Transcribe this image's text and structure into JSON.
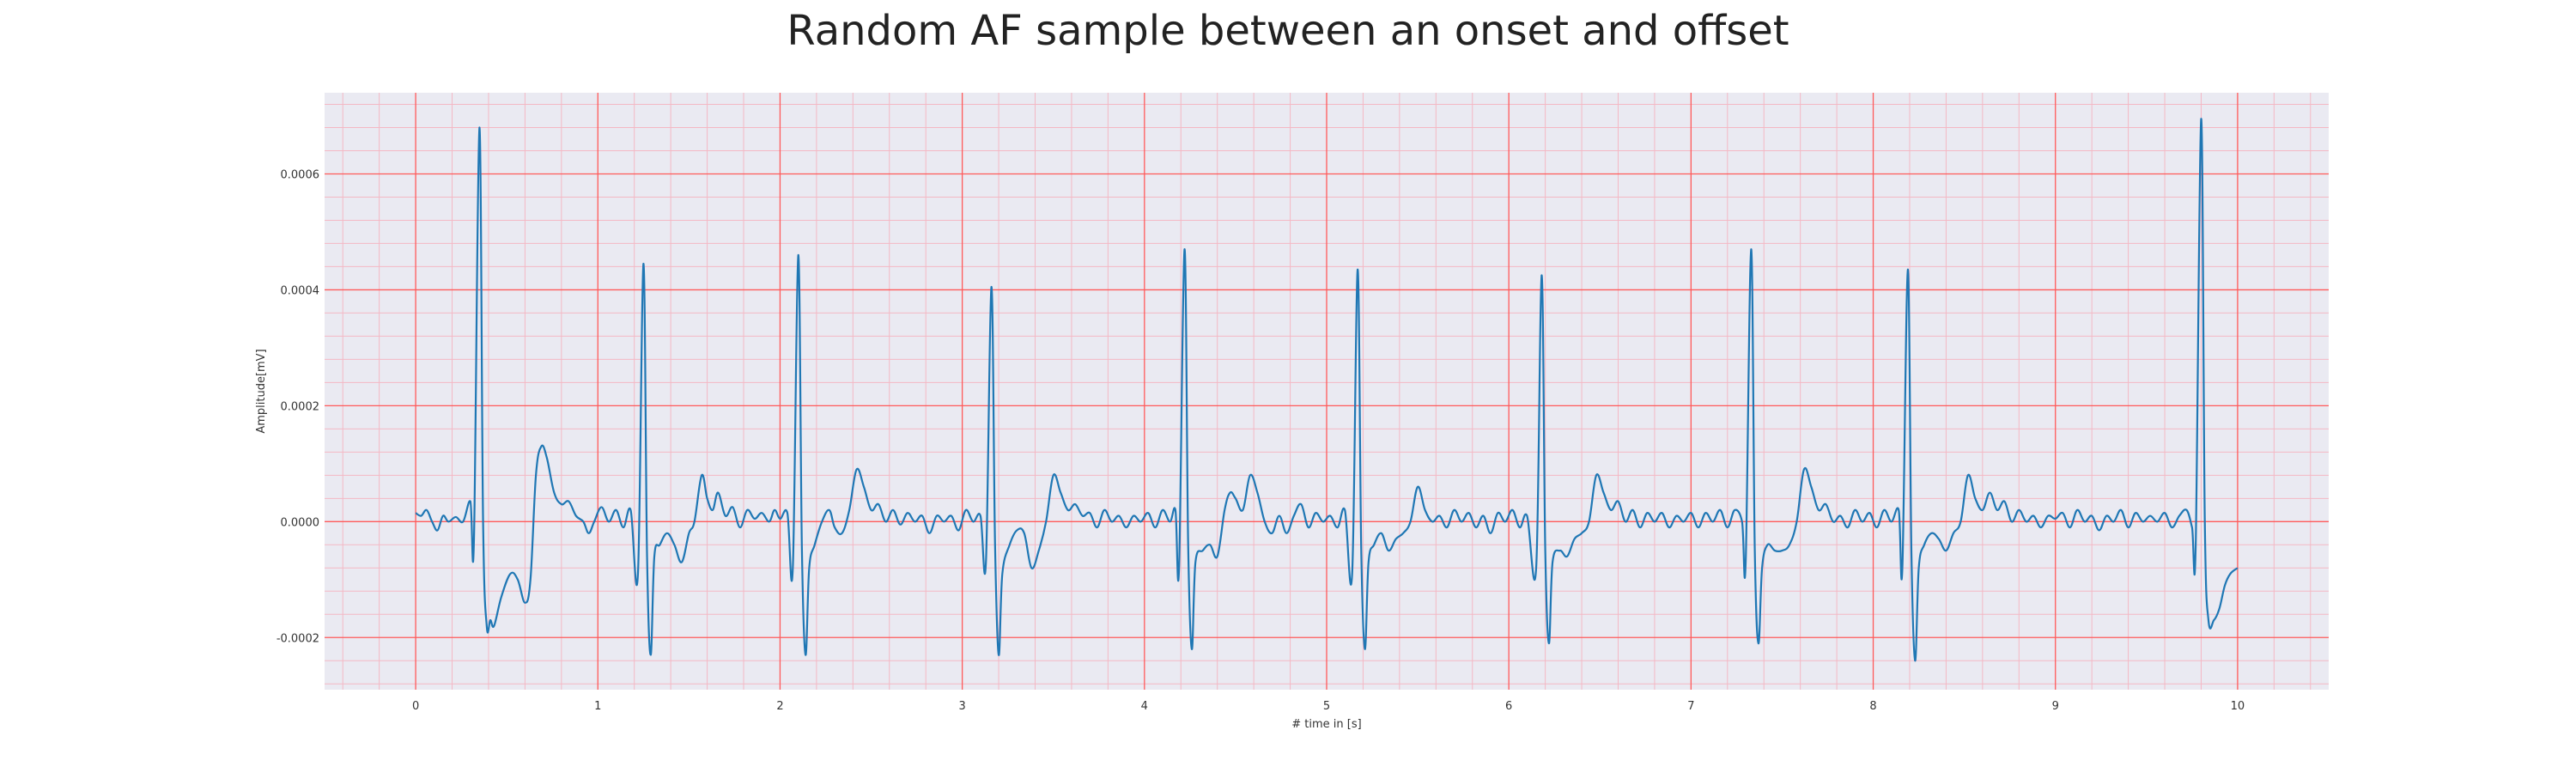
{
  "chart_data": {
    "type": "line",
    "title": "Random AF sample between an onset and offset",
    "xlabel": "# time in [s]",
    "ylabel": "Amplitude[mV]",
    "xlim": [
      -0.5,
      10.5
    ],
    "ylim": [
      -0.00029,
      0.00074
    ],
    "xticks": [
      0,
      1,
      2,
      3,
      4,
      5,
      6,
      7,
      8,
      9,
      10
    ],
    "xtick_labels": [
      "0",
      "1",
      "2",
      "3",
      "4",
      "5",
      "6",
      "7",
      "8",
      "9",
      "10"
    ],
    "yticks": [
      -0.0002,
      0.0,
      0.0002,
      0.0004,
      0.0006
    ],
    "ytick_labels": [
      "-0.0002",
      "0.0000",
      "0.0002",
      "0.0004",
      "0.0006"
    ],
    "grid": true,
    "minor_grid": true,
    "colors": {
      "background": "#eaeaf2",
      "major_grid": "#ff5a5a",
      "minor_grid": "#f4b8c4",
      "series": "#1f77b4"
    },
    "series": [
      {
        "r_peaks": [
          0.35,
          1.25,
          2.1,
          3.16,
          4.22,
          5.17,
          6.18,
          7.33,
          8.19,
          9.8
        ],
        "r_heights": [
          0.00068,
          0.000445,
          0.00046,
          0.000405,
          0.00047,
          0.000435,
          0.000425,
          0.00047,
          0.000435,
          0.000695
        ],
        "s_depths": [
          -0.00018,
          -0.00023,
          -0.00023,
          -0.00023,
          -0.00022,
          -0.00022,
          -0.00021,
          -0.00021,
          -0.00024,
          -0.00017
        ],
        "points": [
          [
            0.0,
            1.5e-05
          ],
          [
            0.03,
            1e-05
          ],
          [
            0.06,
            2e-05
          ],
          [
            0.09,
            0.0
          ],
          [
            0.12,
            -1.5e-05
          ],
          [
            0.15,
            1e-05
          ],
          [
            0.18,
            0.0
          ],
          [
            0.22,
            8e-06
          ],
          [
            0.26,
            0.0
          ],
          [
            0.3,
            3.5e-05
          ],
          [
            0.32,
            -3e-05
          ],
          [
            0.35,
            0.00068
          ],
          [
            0.37,
            0.0
          ],
          [
            0.39,
            -0.00018
          ],
          [
            0.41,
            -0.00017
          ],
          [
            0.43,
            -0.00018
          ],
          [
            0.47,
            -0.00013
          ],
          [
            0.52,
            -9e-05
          ],
          [
            0.56,
            -0.0001
          ],
          [
            0.6,
            -0.00014
          ],
          [
            0.63,
            -0.0001
          ],
          [
            0.66,
            8e-05
          ],
          [
            0.69,
            0.00013
          ],
          [
            0.72,
            0.00011
          ],
          [
            0.76,
            5e-05
          ],
          [
            0.8,
            3e-05
          ],
          [
            0.84,
            3.5e-05
          ],
          [
            0.88,
            1e-05
          ],
          [
            0.92,
            0.0
          ],
          [
            0.95,
            -2e-05
          ],
          [
            0.98,
            0.0
          ],
          [
            1.02,
            2.5e-05
          ],
          [
            1.06,
            0.0
          ],
          [
            1.1,
            2e-05
          ],
          [
            1.14,
            -1e-05
          ],
          [
            1.18,
            2e-05
          ],
          [
            1.22,
            -9e-05
          ],
          [
            1.25,
            0.000445
          ],
          [
            1.27,
            -6e-05
          ],
          [
            1.29,
            -0.00023
          ],
          [
            1.31,
            -6e-05
          ],
          [
            1.34,
            -4e-05
          ],
          [
            1.38,
            -2e-05
          ],
          [
            1.42,
            -4e-05
          ],
          [
            1.46,
            -7e-05
          ],
          [
            1.5,
            -2e-05
          ],
          [
            1.53,
            0.0
          ],
          [
            1.57,
            8e-05
          ],
          [
            1.6,
            4e-05
          ],
          [
            1.63,
            2e-05
          ],
          [
            1.66,
            5e-05
          ],
          [
            1.7,
            1e-05
          ],
          [
            1.74,
            2.5e-05
          ],
          [
            1.78,
            -1e-05
          ],
          [
            1.82,
            2e-05
          ],
          [
            1.86,
            5e-06
          ],
          [
            1.9,
            1.5e-05
          ],
          [
            1.94,
            0.0
          ],
          [
            1.97,
            2e-05
          ],
          [
            2.0,
            5e-06
          ],
          [
            2.04,
            1.5e-05
          ],
          [
            2.07,
            -8e-05
          ],
          [
            2.1,
            0.00046
          ],
          [
            2.12,
            -5e-05
          ],
          [
            2.14,
            -0.00023
          ],
          [
            2.16,
            -8e-05
          ],
          [
            2.19,
            -4e-05
          ],
          [
            2.23,
            0.0
          ],
          [
            2.27,
            2e-05
          ],
          [
            2.3,
            -1e-05
          ],
          [
            2.34,
            -2e-05
          ],
          [
            2.38,
            2e-05
          ],
          [
            2.42,
            9e-05
          ],
          [
            2.46,
            6e-05
          ],
          [
            2.5,
            2e-05
          ],
          [
            2.54,
            3e-05
          ],
          [
            2.58,
            0.0
          ],
          [
            2.62,
            2e-05
          ],
          [
            2.66,
            -5e-06
          ],
          [
            2.7,
            1.5e-05
          ],
          [
            2.74,
            0.0
          ],
          [
            2.78,
            1e-05
          ],
          [
            2.82,
            -2e-05
          ],
          [
            2.86,
            1e-05
          ],
          [
            2.9,
            0.0
          ],
          [
            2.94,
            1e-05
          ],
          [
            2.98,
            -1.5e-05
          ],
          [
            3.02,
            2e-05
          ],
          [
            3.06,
            0.0
          ],
          [
            3.1,
            1e-05
          ],
          [
            3.13,
            -7e-05
          ],
          [
            3.16,
            0.000405
          ],
          [
            3.18,
            -4e-05
          ],
          [
            3.2,
            -0.00023
          ],
          [
            3.22,
            -9e-05
          ],
          [
            3.26,
            -4e-05
          ],
          [
            3.3,
            -1.5e-05
          ],
          [
            3.34,
            -2e-05
          ],
          [
            3.38,
            -8e-05
          ],
          [
            3.42,
            -5e-05
          ],
          [
            3.46,
            0.0
          ],
          [
            3.5,
            8e-05
          ],
          [
            3.54,
            5e-05
          ],
          [
            3.58,
            2e-05
          ],
          [
            3.62,
            3e-05
          ],
          [
            3.66,
            1e-05
          ],
          [
            3.7,
            1.5e-05
          ],
          [
            3.74,
            -1e-05
          ],
          [
            3.78,
            2e-05
          ],
          [
            3.82,
            0.0
          ],
          [
            3.86,
            1e-05
          ],
          [
            3.9,
            -1e-05
          ],
          [
            3.94,
            1e-05
          ],
          [
            3.98,
            0.0
          ],
          [
            4.02,
            1.5e-05
          ],
          [
            4.06,
            -1e-05
          ],
          [
            4.1,
            2e-05
          ],
          [
            4.14,
            0.0
          ],
          [
            4.17,
            2e-05
          ],
          [
            4.19,
            -8e-05
          ],
          [
            4.22,
            0.00047
          ],
          [
            4.24,
            -4e-05
          ],
          [
            4.26,
            -0.00022
          ],
          [
            4.28,
            -7e-05
          ],
          [
            4.32,
            -5e-05
          ],
          [
            4.36,
            -4e-05
          ],
          [
            4.4,
            -6e-05
          ],
          [
            4.44,
            2e-05
          ],
          [
            4.47,
            5e-05
          ],
          [
            4.5,
            4e-05
          ],
          [
            4.54,
            2e-05
          ],
          [
            4.58,
            8e-05
          ],
          [
            4.62,
            5e-05
          ],
          [
            4.66,
            0.0
          ],
          [
            4.7,
            -2e-05
          ],
          [
            4.74,
            1e-05
          ],
          [
            4.78,
            -2e-05
          ],
          [
            4.82,
            1e-05
          ],
          [
            4.86,
            3e-05
          ],
          [
            4.9,
            -1e-05
          ],
          [
            4.94,
            1.5e-05
          ],
          [
            4.98,
            0.0
          ],
          [
            5.02,
            1e-05
          ],
          [
            5.06,
            -1e-05
          ],
          [
            5.1,
            2e-05
          ],
          [
            5.14,
            -9e-05
          ],
          [
            5.17,
            0.000435
          ],
          [
            5.19,
            -5e-05
          ],
          [
            5.21,
            -0.00022
          ],
          [
            5.23,
            -7e-05
          ],
          [
            5.26,
            -4e-05
          ],
          [
            5.3,
            -2e-05
          ],
          [
            5.34,
            -5e-05
          ],
          [
            5.38,
            -3e-05
          ],
          [
            5.42,
            -2e-05
          ],
          [
            5.46,
            0.0
          ],
          [
            5.5,
            6e-05
          ],
          [
            5.54,
            2e-05
          ],
          [
            5.58,
            0.0
          ],
          [
            5.62,
            1e-05
          ],
          [
            5.66,
            -1e-05
          ],
          [
            5.7,
            2e-05
          ],
          [
            5.74,
            0.0
          ],
          [
            5.78,
            1.5e-05
          ],
          [
            5.82,
            -1e-05
          ],
          [
            5.86,
            1e-05
          ],
          [
            5.9,
            -2e-05
          ],
          [
            5.94,
            1.5e-05
          ],
          [
            5.98,
            0.0
          ],
          [
            6.02,
            2e-05
          ],
          [
            6.06,
            -1e-05
          ],
          [
            6.1,
            1e-05
          ],
          [
            6.15,
            -8e-05
          ],
          [
            6.18,
            0.000425
          ],
          [
            6.2,
            -5e-05
          ],
          [
            6.22,
            -0.00021
          ],
          [
            6.24,
            -7e-05
          ],
          [
            6.28,
            -5e-05
          ],
          [
            6.32,
            -6e-05
          ],
          [
            6.36,
            -3e-05
          ],
          [
            6.4,
            -2e-05
          ],
          [
            6.44,
            0.0
          ],
          [
            6.48,
            8e-05
          ],
          [
            6.52,
            5e-05
          ],
          [
            6.56,
            2e-05
          ],
          [
            6.6,
            3.5e-05
          ],
          [
            6.64,
            0.0
          ],
          [
            6.68,
            2e-05
          ],
          [
            6.72,
            -1e-05
          ],
          [
            6.76,
            1.5e-05
          ],
          [
            6.8,
            0.0
          ],
          [
            6.84,
            1.5e-05
          ],
          [
            6.88,
            -1e-05
          ],
          [
            6.92,
            1e-05
          ],
          [
            6.96,
            0.0
          ],
          [
            7.0,
            1.5e-05
          ],
          [
            7.04,
            -1e-05
          ],
          [
            7.08,
            1.5e-05
          ],
          [
            7.12,
            0.0
          ],
          [
            7.16,
            2e-05
          ],
          [
            7.2,
            -1e-05
          ],
          [
            7.24,
            2e-05
          ],
          [
            7.28,
            0.0
          ],
          [
            7.3,
            -7e-05
          ],
          [
            7.33,
            0.00047
          ],
          [
            7.35,
            -5e-05
          ],
          [
            7.37,
            -0.00021
          ],
          [
            7.39,
            -8e-05
          ],
          [
            7.42,
            -4e-05
          ],
          [
            7.46,
            -5e-05
          ],
          [
            7.5,
            -5e-05
          ],
          [
            7.54,
            -4e-05
          ],
          [
            7.58,
            0.0
          ],
          [
            7.62,
            9e-05
          ],
          [
            7.66,
            6e-05
          ],
          [
            7.7,
            2e-05
          ],
          [
            7.74,
            3e-05
          ],
          [
            7.78,
            0.0
          ],
          [
            7.82,
            1e-05
          ],
          [
            7.86,
            -1e-05
          ],
          [
            7.9,
            2e-05
          ],
          [
            7.94,
            0.0
          ],
          [
            7.98,
            1.5e-05
          ],
          [
            8.02,
            -1e-05
          ],
          [
            8.06,
            2e-05
          ],
          [
            8.1,
            0.0
          ],
          [
            8.14,
            2e-05
          ],
          [
            8.16,
            -8e-05
          ],
          [
            8.19,
            0.000435
          ],
          [
            8.21,
            -6e-05
          ],
          [
            8.23,
            -0.00024
          ],
          [
            8.25,
            -8e-05
          ],
          [
            8.28,
            -4e-05
          ],
          [
            8.32,
            -2e-05
          ],
          [
            8.36,
            -3e-05
          ],
          [
            8.4,
            -5e-05
          ],
          [
            8.44,
            -2e-05
          ],
          [
            8.48,
            0.0
          ],
          [
            8.52,
            8e-05
          ],
          [
            8.56,
            4e-05
          ],
          [
            8.6,
            2e-05
          ],
          [
            8.64,
            5e-05
          ],
          [
            8.68,
            2e-05
          ],
          [
            8.72,
            3.5e-05
          ],
          [
            8.76,
            0.0
          ],
          [
            8.8,
            2e-05
          ],
          [
            8.84,
            0.0
          ],
          [
            8.88,
            1e-05
          ],
          [
            8.92,
            -1e-05
          ],
          [
            8.96,
            1e-05
          ],
          [
            9.0,
            5e-06
          ],
          [
            9.04,
            1.5e-05
          ],
          [
            9.08,
            -1e-05
          ],
          [
            9.12,
            2e-05
          ],
          [
            9.16,
            0.0
          ],
          [
            9.2,
            1e-05
          ],
          [
            9.24,
            -1.5e-05
          ],
          [
            9.28,
            1e-05
          ],
          [
            9.32,
            0.0
          ],
          [
            9.36,
            2e-05
          ],
          [
            9.4,
            -1e-05
          ],
          [
            9.44,
            1.5e-05
          ],
          [
            9.48,
            0.0
          ],
          [
            9.52,
            1e-05
          ],
          [
            9.56,
            0.0
          ],
          [
            9.6,
            1.5e-05
          ],
          [
            9.64,
            -1e-05
          ],
          [
            9.68,
            1e-05
          ],
          [
            9.72,
            2e-05
          ],
          [
            9.75,
            -1e-05
          ],
          [
            9.77,
            -4e-05
          ],
          [
            9.8,
            0.000695
          ],
          [
            9.82,
            0.0
          ],
          [
            9.84,
            -0.00017
          ],
          [
            9.87,
            -0.00017
          ],
          [
            9.9,
            -0.00015
          ],
          [
            9.93,
            -0.00011
          ],
          [
            9.96,
            -9e-05
          ],
          [
            10.0,
            -8e-05
          ]
        ]
      }
    ]
  }
}
